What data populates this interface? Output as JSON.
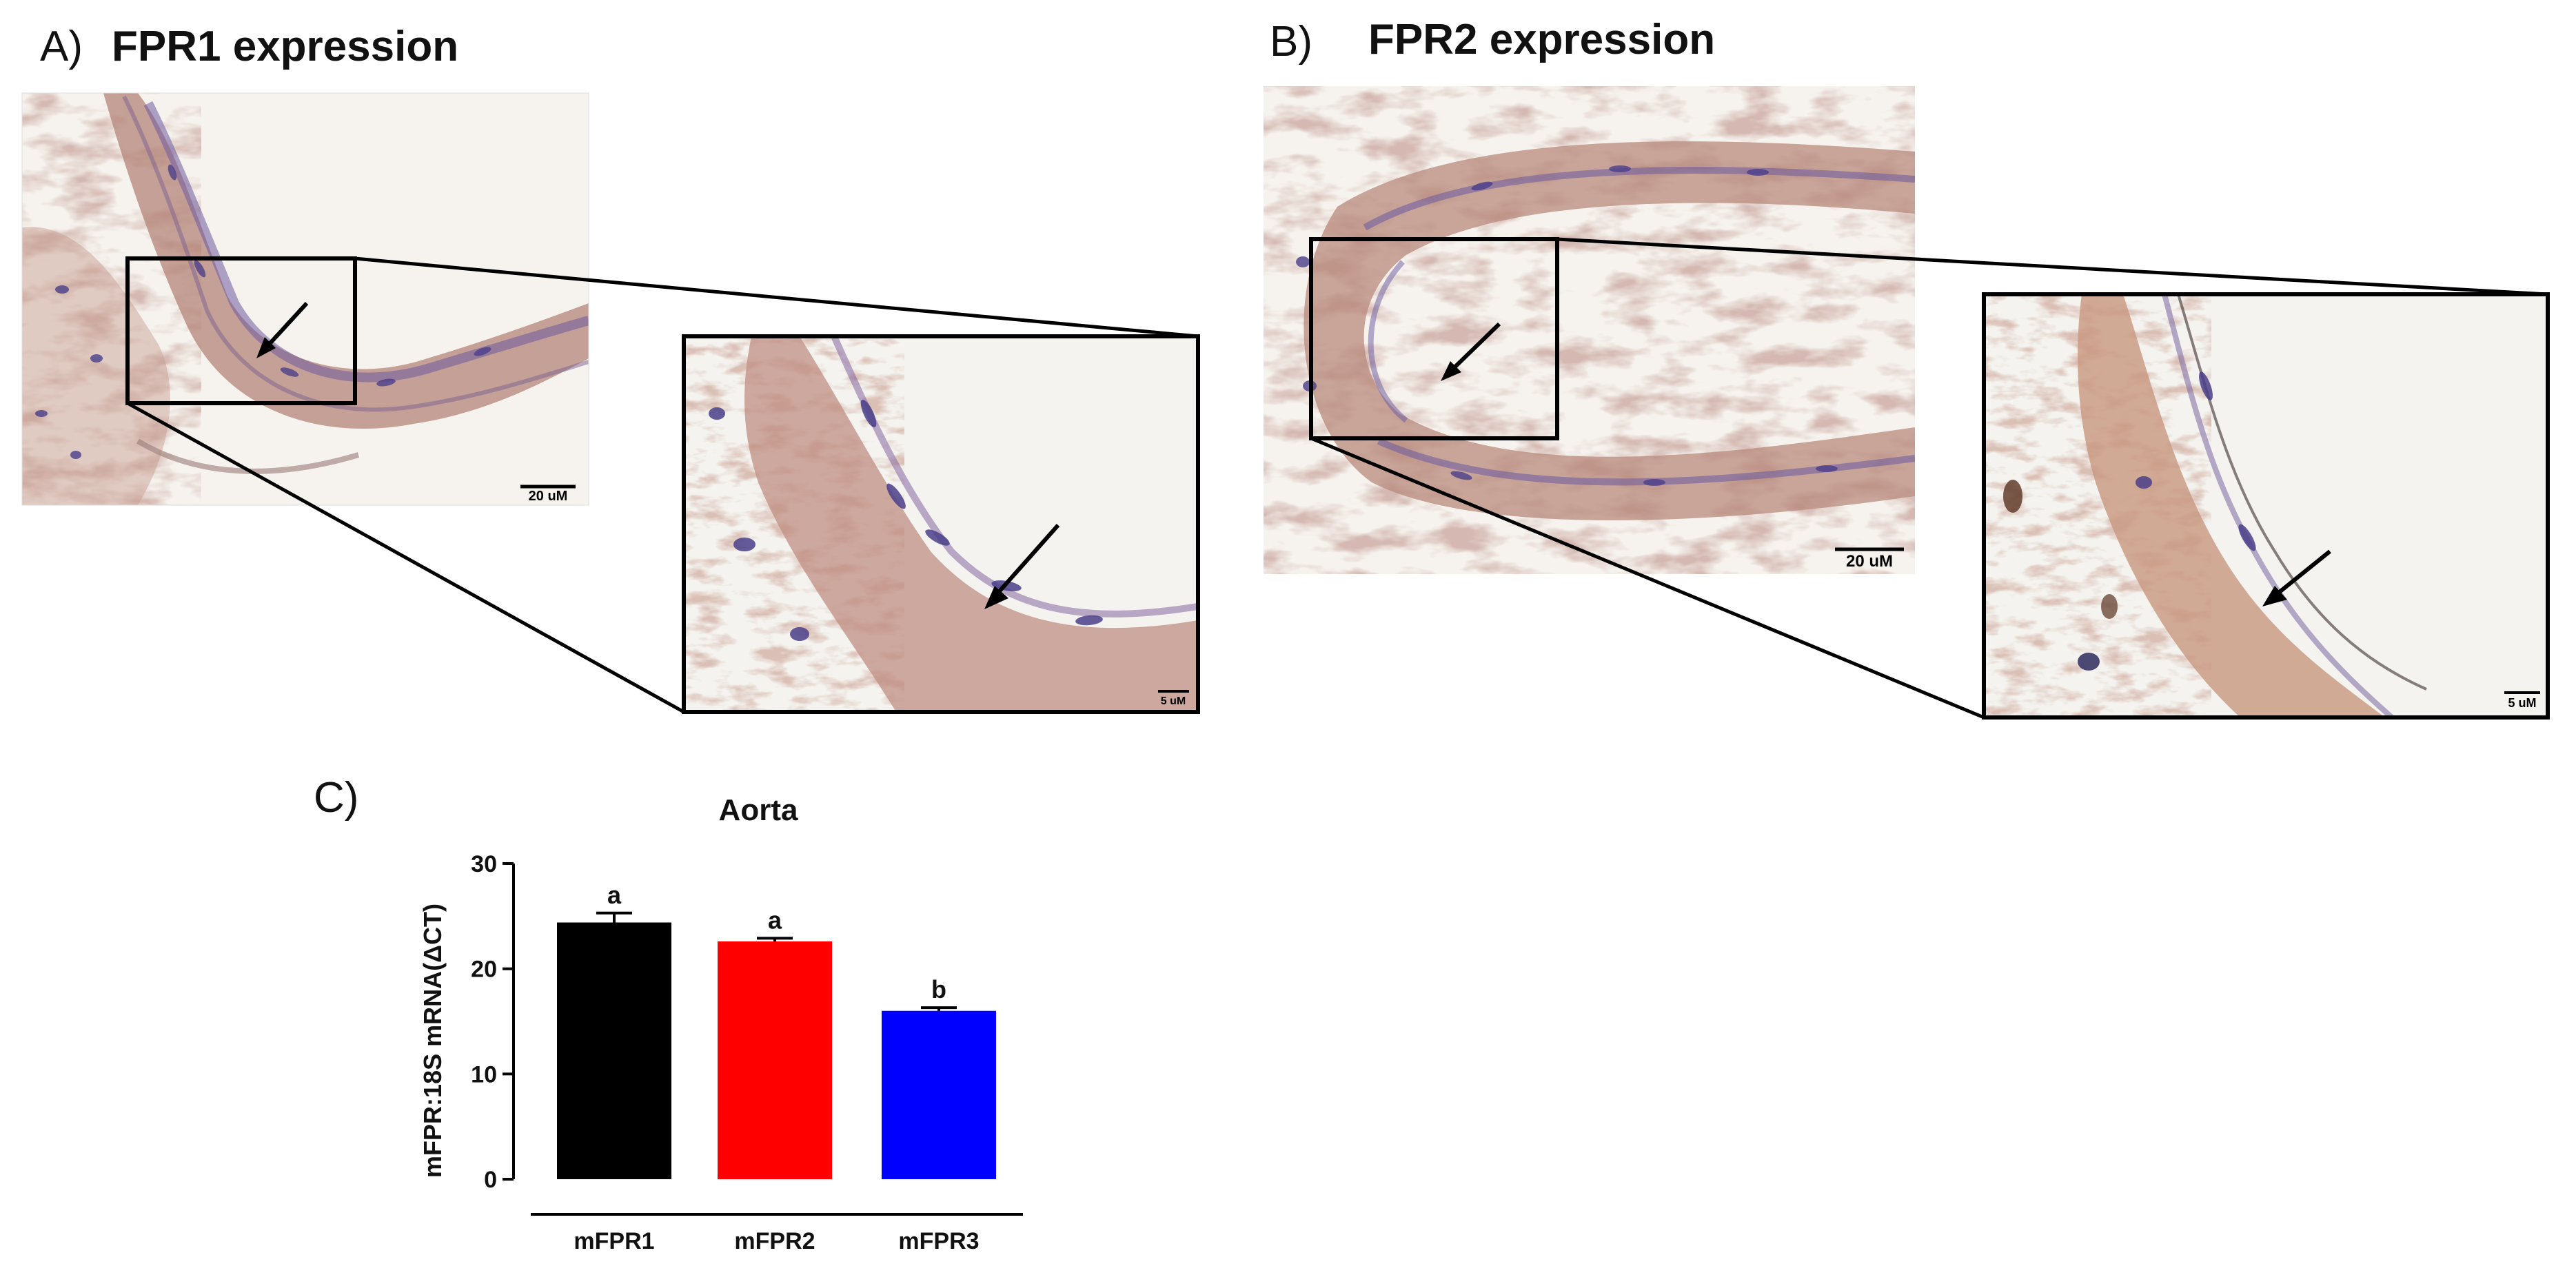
{
  "panelA": {
    "letter": "A)",
    "title": "FPR1 expression",
    "main_scale": "20 uM",
    "inset_scale": "5 uM"
  },
  "panelB": {
    "letter": "B)",
    "title": "FPR2 expression",
    "main_scale": "20 uM",
    "inset_scale": "5 uM"
  },
  "panelC": {
    "letter": "C)"
  },
  "chart_data": {
    "type": "bar",
    "title": "Aorta",
    "xlabel": "",
    "ylabel": "mFPR:18S mRNA(ΔCT)",
    "categories": [
      "mFPR1",
      "mFPR2",
      "mFPR3"
    ],
    "values": [
      24.4,
      22.6,
      16.0
    ],
    "errors": [
      0.9,
      0.3,
      0.3
    ],
    "significance": [
      "a",
      "a",
      "b"
    ],
    "colors": [
      "#000000",
      "#ff0000",
      "#0000ff"
    ],
    "ylim": [
      0,
      30
    ],
    "yticks": [
      "0",
      "10",
      "20",
      "30"
    ],
    "grid": false
  }
}
